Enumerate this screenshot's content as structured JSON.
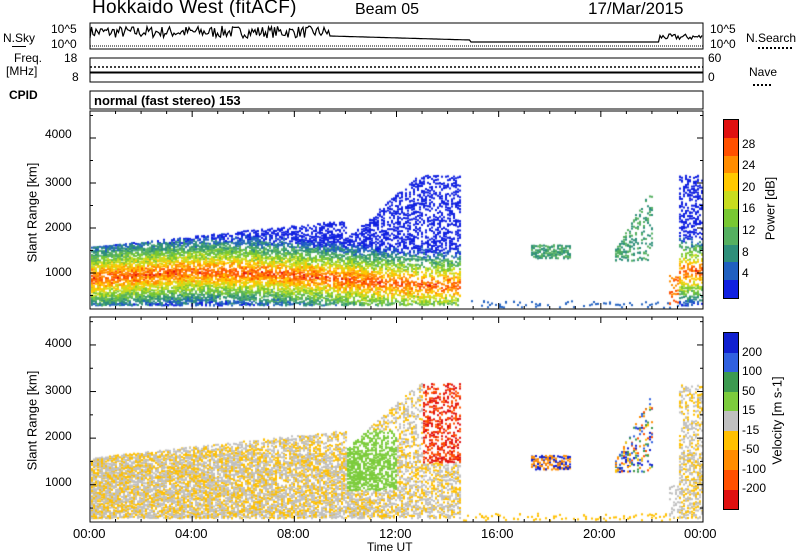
{
  "header": {
    "station": "Hokkaido West (fitACF)",
    "beam": "Beam 05",
    "date": "17/Mar/2015"
  },
  "noise_panel": {
    "left_label": "N.Sky",
    "left_ticks": [
      "10^5",
      "10^0"
    ],
    "right_ticks": [
      "10^5",
      "10^0"
    ],
    "right_label": "N.Search"
  },
  "freq_panel": {
    "label_top": "Freq.",
    "label_unit": "[MHz]",
    "left_ticks": [
      "18",
      "8"
    ],
    "right_ticks": [
      "60",
      "0"
    ],
    "right_label": "Nave"
  },
  "cpid_panel": {
    "label": "CPID",
    "text": "normal (fast stereo) 153"
  },
  "time_axis": {
    "label": "Time UT",
    "ticks": [
      "00:00",
      "04:00",
      "08:00",
      "12:00",
      "16:00",
      "20:00",
      "00:00"
    ]
  },
  "chart_data": [
    {
      "type": "heatmap",
      "title": "",
      "xlabel": "Time UT",
      "ylabel": "Slant Range [km]",
      "y_ticks": [
        "1000",
        "2000",
        "3000",
        "4000"
      ],
      "colorbar": {
        "label": "Power [dB]",
        "ticks": [
          "4",
          "8",
          "12",
          "16",
          "20",
          "24",
          "28"
        ],
        "colors": [
          "#1020e0",
          "#2060c0",
          "#2e8f7a",
          "#55b060",
          "#78c832",
          "#c8dc1e",
          "#ffc800",
          "#ff8c00",
          "#ff5000",
          "#e01010"
        ]
      },
      "ylim": [
        200,
        4600
      ]
    },
    {
      "type": "heatmap",
      "title": "",
      "xlabel": "Time UT",
      "ylabel": "Slant Range [km]",
      "y_ticks": [
        "1000",
        "2000",
        "3000",
        "4000"
      ],
      "colorbar": {
        "label": "Velocity [m s-1]",
        "ticks": [
          "200",
          "100",
          "50",
          "15",
          "-15",
          "-50",
          "-100",
          "-200"
        ],
        "colors": [
          "#1020d0",
          "#3060e0",
          "#3c9a50",
          "#7ccc3c",
          "#c0c0c0",
          "#ffc000",
          "#ff8c00",
          "#ff5000",
          "#e01010"
        ]
      },
      "ylim": [
        200,
        4600
      ]
    }
  ]
}
